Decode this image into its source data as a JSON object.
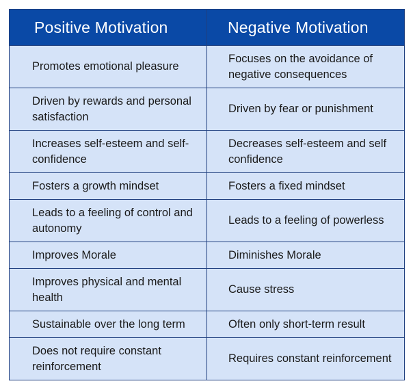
{
  "table": {
    "headers": {
      "positive": "Positive Motivation",
      "negative": "Negative Motivation"
    },
    "rows": [
      {
        "positive": "Promotes emotional pleasure",
        "negative": "Focuses on the avoidance of negative consequences"
      },
      {
        "positive": "Driven by rewards and personal satisfaction",
        "negative": "Driven by fear or punishment"
      },
      {
        "positive": "Increases self-esteem and self-confidence",
        "negative": "Decreases self-esteem and self confidence"
      },
      {
        "positive": "Fosters a growth mindset",
        "negative": "Fosters a fixed mindset"
      },
      {
        "positive": "Leads to a feeling of control and autonomy",
        "negative": "Leads to a feeling of powerless"
      },
      {
        "positive": "Improves Morale",
        "negative": "Diminishes Morale"
      },
      {
        "positive": "Improves physical and mental health",
        "negative": "Cause stress"
      },
      {
        "positive": "Sustainable over the long term",
        "negative": "Often only short-term result"
      },
      {
        "positive": "Does not require constant reinforcement",
        "negative": "Requires constant reinforcement"
      }
    ]
  },
  "colors": {
    "header_bg": "#0a49a6",
    "cell_bg": "#d5e3f8",
    "border": "#1f3f7f"
  }
}
